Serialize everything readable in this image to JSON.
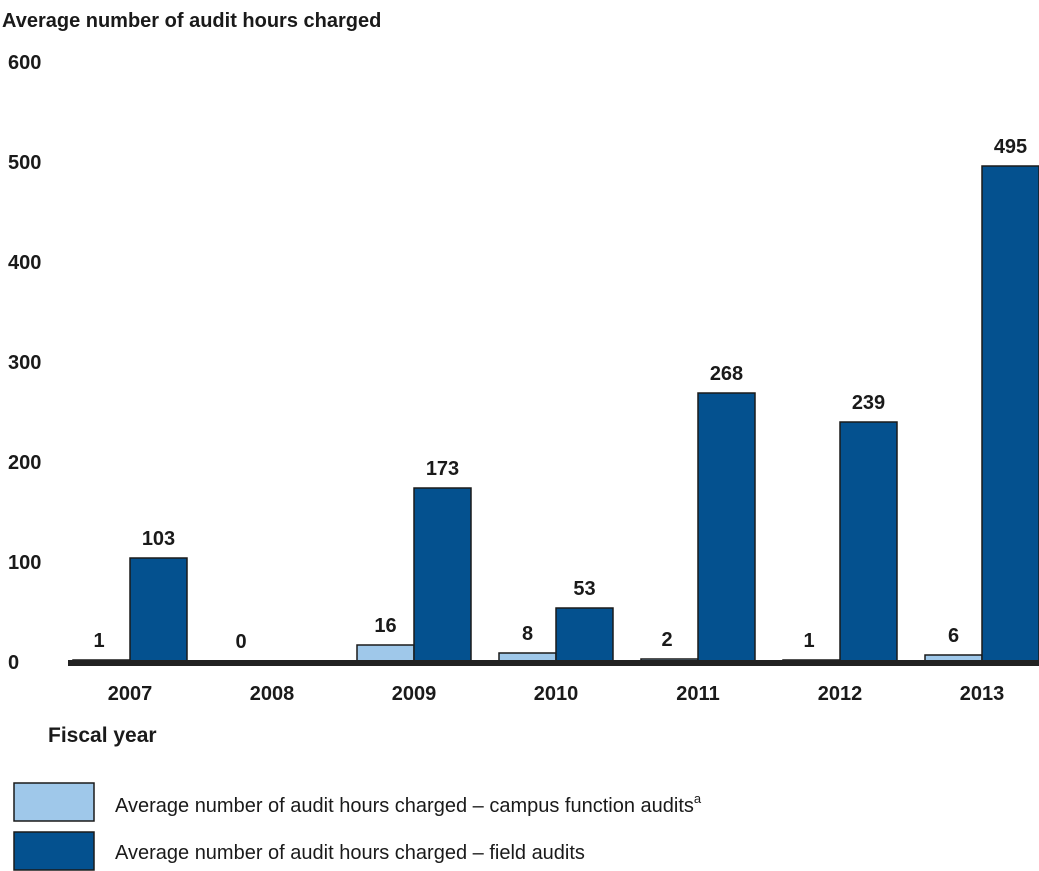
{
  "chart_data": {
    "type": "bar",
    "ylabel": "Average number of audit hours charged",
    "xlabel": "Fiscal year",
    "ylim": [
      0,
      600
    ],
    "yticks": [
      0,
      100,
      200,
      300,
      400,
      500,
      600
    ],
    "grid": false,
    "legend_placement": "bottom-left",
    "categories": [
      "2007",
      "2008",
      "2009",
      "2010",
      "2011",
      "2012",
      "2013"
    ],
    "series": [
      {
        "name": "Average number of audit hours charged – campus function audits",
        "name_superscript": "a",
        "color": "#9fc8ea",
        "values": [
          1,
          0,
          16,
          8,
          2,
          1,
          6
        ]
      },
      {
        "name": "Average number of audit hours charged – field audits",
        "color": "#04518f",
        "values": [
          103,
          0,
          173,
          53,
          268,
          239,
          495
        ]
      }
    ],
    "field_value_labels": [
      "103",
      "",
      "173",
      "53",
      "268",
      "239",
      "495"
    ],
    "campus_value_labels": [
      "1",
      "0",
      "16",
      "8",
      "2",
      "1",
      "6"
    ],
    "axis_color": "#222222"
  }
}
